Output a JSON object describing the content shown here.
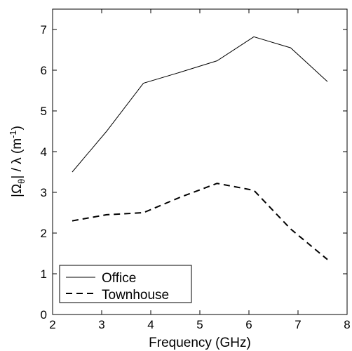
{
  "chart_data": {
    "type": "line",
    "title": "",
    "xlabel": "Frequency (GHz)",
    "ylabel": {
      "prefix": "|Ω",
      "sub": "θ",
      "mid": "| / λ (m",
      "sup": "-1",
      "suffix": ")"
    },
    "xlim": [
      2,
      8
    ],
    "ylim": [
      0,
      7.5
    ],
    "xticks": [
      "2",
      "3",
      "4",
      "5",
      "6",
      "7",
      "8"
    ],
    "yticks": [
      "0",
      "1",
      "2",
      "3",
      "4",
      "5",
      "6",
      "7"
    ],
    "grid": false,
    "legend_position": "bottom-left",
    "series": [
      {
        "name": "Office",
        "style": "solid",
        "x": [
          2.4,
          3.1,
          3.85,
          4.6,
          5.35,
          6.1,
          6.85,
          7.6
        ],
        "y": [
          3.5,
          4.5,
          5.68,
          5.95,
          6.23,
          6.82,
          6.55,
          5.72
        ]
      },
      {
        "name": "Townhouse",
        "style": "dashed",
        "x": [
          2.4,
          3.1,
          3.85,
          4.6,
          5.35,
          6.1,
          6.85,
          7.6
        ],
        "y": [
          2.3,
          2.45,
          2.5,
          2.88,
          3.22,
          3.05,
          2.1,
          1.35
        ]
      }
    ]
  }
}
